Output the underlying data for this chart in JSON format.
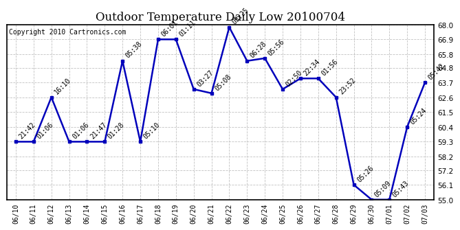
{
  "title": "Outdoor Temperature Daily Low 20100704",
  "copyright": "Copyright 2010 Cartronics.com",
  "x_labels": [
    "06/10",
    "06/11",
    "06/12",
    "06/13",
    "06/14",
    "06/15",
    "06/16",
    "06/17",
    "06/18",
    "06/19",
    "06/20",
    "06/21",
    "06/22",
    "06/23",
    "06/24",
    "06/25",
    "06/26",
    "06/27",
    "06/28",
    "06/29",
    "06/30",
    "07/01",
    "07/02",
    "07/03"
  ],
  "y_values": [
    59.3,
    59.3,
    62.6,
    59.3,
    59.3,
    59.3,
    65.3,
    59.3,
    66.9,
    66.9,
    63.2,
    62.9,
    67.8,
    65.3,
    65.5,
    63.2,
    64.0,
    64.0,
    62.6,
    56.1,
    55.0,
    55.0,
    60.4,
    63.7
  ],
  "point_labels": [
    "21:42",
    "01:06",
    "16:10",
    "01:06",
    "21:47",
    "01:28",
    "05:38",
    "05:10",
    "06:01",
    "01:11",
    "03:27",
    "05:08",
    "05:25",
    "06:28",
    "05:56",
    "02:50",
    "22:34",
    "01:56",
    "23:52",
    "05:26",
    "05:09",
    "05:43",
    "05:24",
    "05:42"
  ],
  "line_color": "#0000BB",
  "marker_color": "#0000BB",
  "background_color": "#FFFFFF",
  "grid_color": "#BBBBBB",
  "title_fontsize": 12,
  "annotation_fontsize": 7,
  "copyright_fontsize": 7,
  "ylim": [
    55.0,
    68.0
  ],
  "yticks": [
    55.0,
    56.1,
    57.2,
    58.2,
    59.3,
    60.4,
    61.5,
    62.6,
    63.7,
    64.8,
    65.8,
    66.9,
    68.0
  ]
}
